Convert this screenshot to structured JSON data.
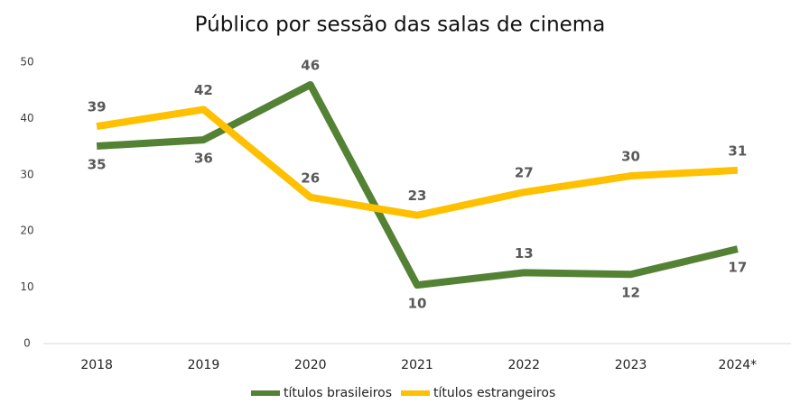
{
  "chart_data": {
    "type": "line",
    "title": "Público por sessão das salas de cinema",
    "categories": [
      "2018",
      "2019",
      "2020",
      "2021",
      "2022",
      "2023",
      "2024*"
    ],
    "series": [
      {
        "name": "títulos brasileiros",
        "color": "#548235",
        "values": [
          35.1,
          36.2,
          46.0,
          10.4,
          12.6,
          12.3,
          16.8
        ],
        "value_labels": [
          "35",
          "36",
          "46",
          "10",
          "13",
          "12",
          "17"
        ]
      },
      {
        "name": "títulos estrangeiros",
        "color": "#ffc000",
        "values": [
          38.6,
          41.6,
          26.0,
          22.8,
          26.9,
          29.8,
          30.8
        ],
        "value_labels": [
          "39",
          "42",
          "26",
          "23",
          "27",
          "30",
          "31"
        ]
      }
    ],
    "ylim": [
      0,
      50
    ],
    "yticks": [
      0,
      10,
      20,
      30,
      40,
      50
    ],
    "grid": false,
    "legend": "bottom"
  }
}
